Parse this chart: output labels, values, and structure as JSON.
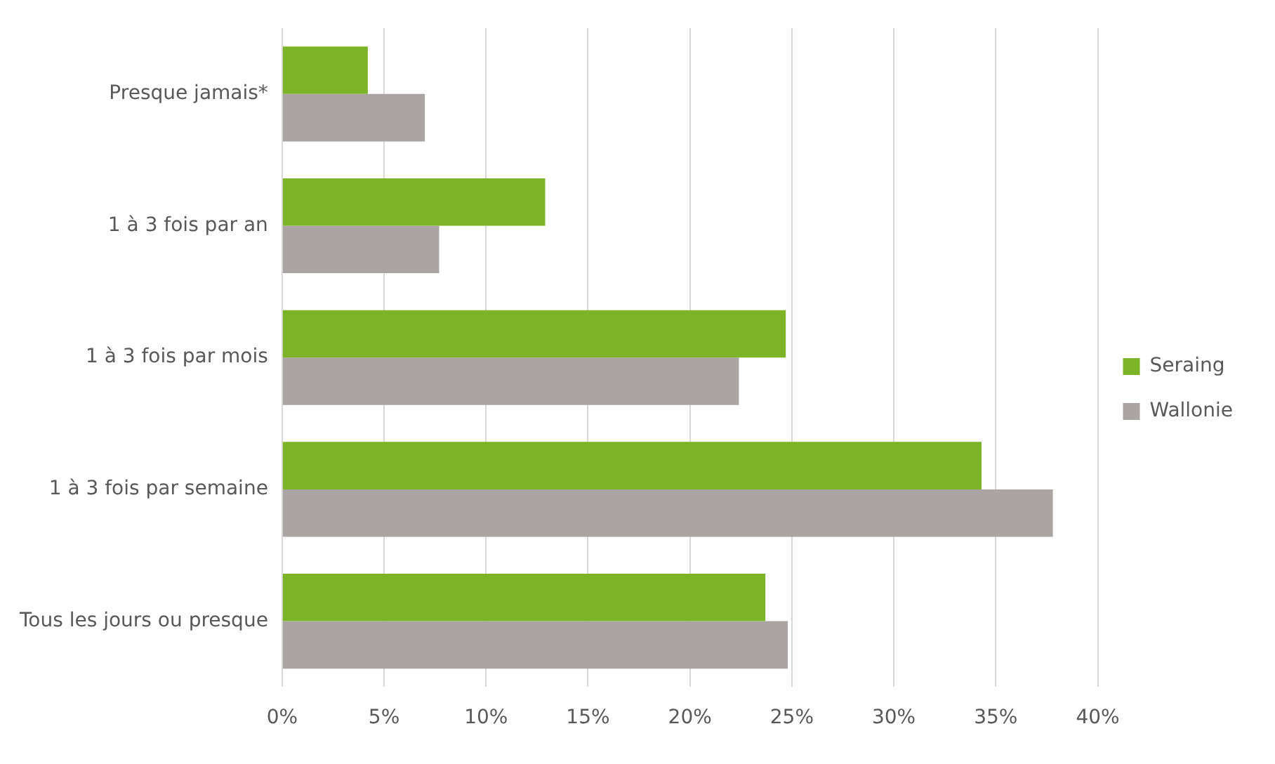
{
  "chart_data": {
    "type": "bar",
    "orientation": "horizontal",
    "categories": [
      "Presque jamais*",
      "1 à 3 fois par an",
      "1 à 3 fois par mois",
      "1 à 3 fois par semaine",
      "Tous les jours ou presque"
    ],
    "series": [
      {
        "name": "Seraing",
        "color": "#7db327",
        "values": [
          4.2,
          12.9,
          24.7,
          34.3,
          23.7
        ]
      },
      {
        "name": "Wallonie",
        "color": "#aaa5a3",
        "values": [
          7.0,
          7.7,
          22.4,
          37.8,
          24.8
        ]
      }
    ],
    "xlim": [
      0,
      40
    ],
    "xticks": [
      {
        "value": 0,
        "label": "0%"
      },
      {
        "value": 5,
        "label": "5%"
      },
      {
        "value": 10,
        "label": "10%"
      },
      {
        "value": 15,
        "label": "15%"
      },
      {
        "value": 20,
        "label": "20%"
      },
      {
        "value": 25,
        "label": "25%"
      },
      {
        "value": 30,
        "label": "30%"
      },
      {
        "value": 35,
        "label": "35%"
      },
      {
        "value": 40,
        "label": "40%"
      }
    ],
    "grid": "x",
    "legend": "right"
  }
}
